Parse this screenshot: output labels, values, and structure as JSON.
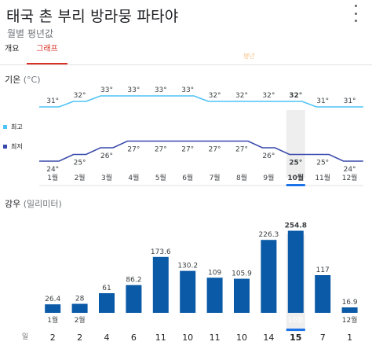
{
  "header": {
    "title": "태국 촌 부리 방라뭉 파타야",
    "subtitle": "월별 평년값"
  },
  "tabs": {
    "overview": "개요",
    "graph": "그래프",
    "faded": "평년"
  },
  "temperature": {
    "title": "기온",
    "unit": "(°C)",
    "legend_high": "최고",
    "legend_low": "최저",
    "color_high": "#4fc3f7",
    "color_low": "#3949ab"
  },
  "rain": {
    "title": "강우",
    "unit": "(밀리미터)",
    "bar_color": "#0b5aa7",
    "days_label": "일"
  },
  "selected_index": 9,
  "chart_data": [
    {
      "type": "line",
      "categories": [
        "1월",
        "2월",
        "3월",
        "4월",
        "5월",
        "6월",
        "7월",
        "8월",
        "9월",
        "10월",
        "11월",
        "12월"
      ],
      "series": [
        {
          "name": "최고",
          "values": [
            31,
            32,
            33,
            33,
            33,
            33,
            32,
            32,
            32,
            32,
            31,
            31
          ]
        },
        {
          "name": "최저",
          "values": [
            24,
            25,
            26,
            27,
            27,
            27,
            27,
            27,
            26,
            25,
            25,
            24
          ]
        }
      ],
      "value_labels": {
        "high": [
          "31°",
          "32°",
          "33°",
          "33°",
          "33°",
          "33°",
          "32°",
          "32°",
          "32°",
          "32°",
          "31°",
          "31°"
        ],
        "low": [
          "24°",
          "25°",
          "26°",
          "27°",
          "27°",
          "27°",
          "27°",
          "27°",
          "26°",
          "25°",
          "25°",
          "24°"
        ]
      },
      "ylabel": "기온 (°C)"
    },
    {
      "type": "bar",
      "categories": [
        "1월",
        "2월",
        "3월",
        "4월",
        "5월",
        "6월",
        "7월",
        "8월",
        "9월",
        "10월",
        "11월",
        "12월"
      ],
      "values": [
        26.4,
        28,
        61,
        86.2,
        173.6,
        130.2,
        109,
        105.9,
        226.3,
        254.8,
        117,
        16.9
      ],
      "value_labels": [
        "26.4",
        "28",
        "61",
        "86.2",
        "173.6",
        "130.2",
        "109",
        "105.9",
        "226.3",
        "254.8",
        "117",
        "16.9"
      ],
      "days": [
        "2",
        "2",
        "4",
        "6",
        "11",
        "10",
        "11",
        "10",
        "14",
        "15",
        "7",
        "1"
      ],
      "ylabel": "강우 (밀리미터)"
    }
  ]
}
